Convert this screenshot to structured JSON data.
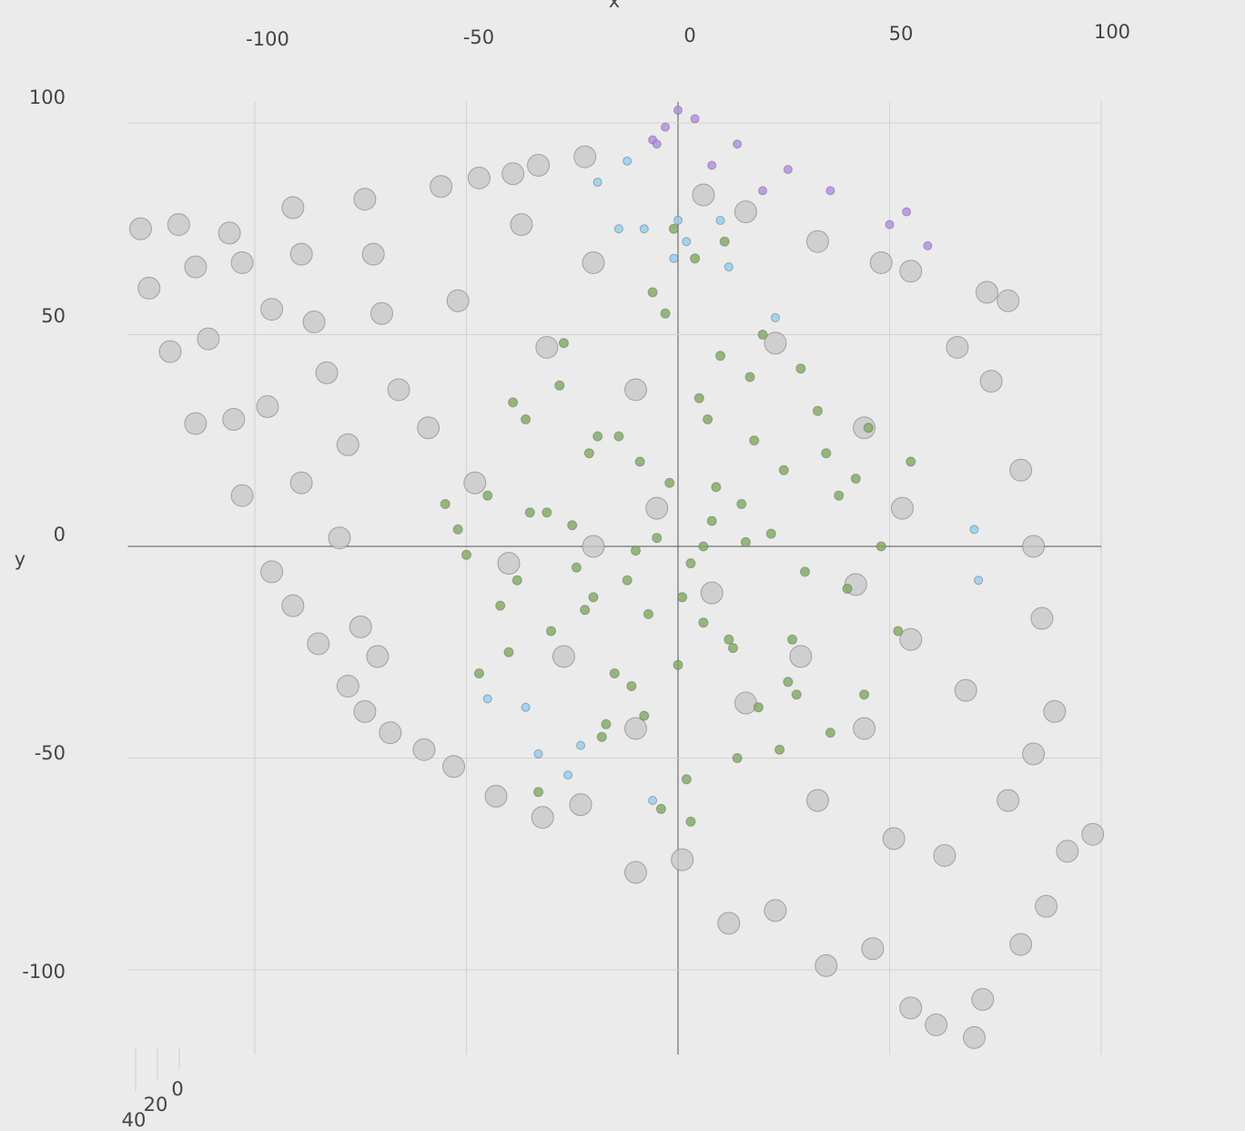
{
  "chart_data": {
    "type": "scatter3d",
    "x_label": "x",
    "y_label": "y",
    "xlim": [
      -130,
      100
    ],
    "ylim": [
      -120,
      105
    ],
    "xticks": [
      -100,
      -50,
      0,
      50,
      100
    ],
    "yticks": [
      -100,
      -50,
      0,
      50,
      100
    ],
    "zticks": [
      0,
      20,
      40
    ],
    "grid": true,
    "series": [
      {
        "color": "#c8c8c8",
        "size": 12,
        "x": [
          -127,
          -118,
          -125,
          -114,
          -120,
          -111,
          -103,
          -106,
          -91,
          -96,
          -105,
          -114,
          -97,
          -89,
          -86,
          -83,
          -74,
          -72,
          -70,
          -66,
          -78,
          -89,
          -103,
          -80,
          -96,
          -91,
          -85,
          -75,
          -78,
          -71,
          -74,
          -68,
          -60,
          -53,
          -43,
          -32,
          -23,
          -10,
          1,
          12,
          23,
          35,
          46,
          55,
          70,
          61,
          72,
          81,
          87,
          98,
          92,
          78,
          84,
          89,
          86,
          84,
          81,
          74,
          78,
          73,
          66,
          55,
          48,
          33,
          16,
          6,
          -22,
          -33,
          -39,
          -47,
          -56,
          -52,
          -37,
          -31,
          -20,
          -10,
          23,
          44,
          53,
          42,
          29,
          16,
          -10,
          -27,
          -40,
          -48,
          -59,
          -20,
          -5,
          8,
          33,
          51,
          63,
          68,
          55,
          44
        ],
        "y": [
          75,
          76,
          61,
          66,
          46,
          49,
          67,
          74,
          80,
          56,
          30,
          29,
          33,
          69,
          53,
          41,
          82,
          69,
          55,
          37,
          24,
          15,
          12,
          2,
          -6,
          -14,
          -23,
          -19,
          -33,
          -26,
          -39,
          -44,
          -48,
          -52,
          -59,
          -64,
          -61,
          -77,
          -74,
          -89,
          -86,
          -99,
          -95,
          -109,
          -116,
          -113,
          -107,
          -94,
          -85,
          -68,
          -72,
          -60,
          -49,
          -39,
          -17,
          0,
          18,
          39,
          58,
          60,
          47,
          65,
          67,
          72,
          79,
          83,
          92,
          90,
          88,
          87,
          85,
          58,
          76,
          47,
          67,
          37,
          48,
          28,
          9,
          -9,
          -26,
          -37,
          -43,
          -26,
          -4,
          15,
          28,
          0,
          9,
          -11,
          -60,
          -69,
          -73,
          -34,
          -22,
          -43
        ]
      },
      {
        "color": "#7cab5a",
        "size": 5,
        "x": [
          -5,
          3,
          8,
          -12,
          15,
          -20,
          22,
          -2,
          6,
          -9,
          12,
          -25,
          30,
          -35,
          40,
          -45,
          18,
          -15,
          5,
          -8,
          25,
          -30,
          35,
          -40,
          45,
          -50,
          10,
          -18,
          28,
          -28,
          2,
          -3,
          14,
          -6,
          20,
          -22,
          33,
          -38,
          48,
          -55,
          0,
          7,
          -11,
          17,
          -17,
          24,
          -27,
          38,
          -42,
          52,
          4,
          -4,
          11,
          -14,
          19,
          -24,
          29,
          -33,
          42,
          -47,
          1,
          9,
          -7,
          13,
          -19,
          26,
          -31,
          36,
          -39,
          55,
          6,
          -10,
          16,
          -21,
          27,
          -36,
          44,
          -52,
          3,
          -1
        ],
        "y": [
          2,
          -4,
          6,
          -8,
          10,
          -12,
          3,
          15,
          -18,
          20,
          -22,
          5,
          -6,
          8,
          -10,
          12,
          25,
          -30,
          35,
          -40,
          18,
          -20,
          22,
          -25,
          28,
          -2,
          45,
          -45,
          -35,
          38,
          -55,
          55,
          -50,
          60,
          50,
          -15,
          32,
          -8,
          0,
          10,
          -28,
          30,
          -33,
          40,
          -42,
          -48,
          48,
          12,
          -14,
          -20,
          68,
          -62,
          72,
          26,
          -38,
          -5,
          42,
          -58,
          16,
          -30,
          -12,
          14,
          -16,
          -24,
          26,
          -32,
          8,
          -44,
          34,
          20,
          0,
          -1,
          1,
          22,
          -22,
          30,
          -35,
          4,
          -65,
          75
        ]
      },
      {
        "color": "#8ecdf5",
        "size": 4.5,
        "x": [
          -12,
          -19,
          -14,
          -8,
          0,
          10,
          2,
          -1,
          12,
          23,
          70,
          71,
          -45,
          -36,
          -23,
          -33,
          -26,
          -6
        ],
        "y": [
          91,
          86,
          75,
          75,
          77,
          77,
          72,
          68,
          66,
          54,
          4,
          -8,
          -36,
          -38,
          -47,
          -49,
          -54,
          -60
        ]
      },
      {
        "color": "#b388e8",
        "size": 4.5,
        "x": [
          0,
          4,
          -3,
          -6,
          -5,
          14,
          8,
          26,
          20,
          36,
          54,
          50,
          59
        ],
        "y": [
          103,
          101,
          99,
          96,
          95,
          95,
          90,
          89,
          84,
          84,
          79,
          76,
          71
        ]
      }
    ]
  }
}
